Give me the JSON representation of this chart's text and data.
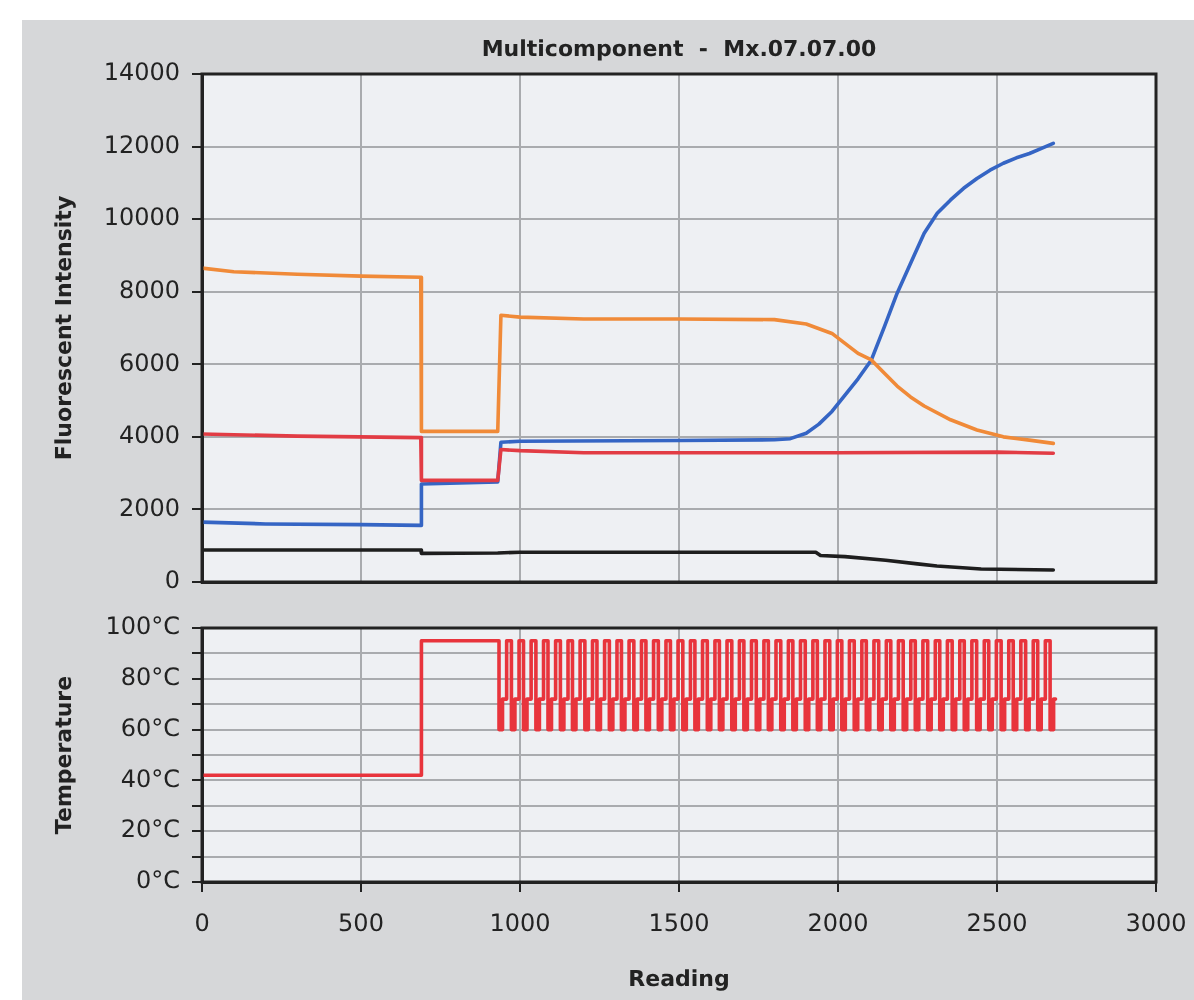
{
  "chart_data": [
    {
      "type": "line",
      "title": "Multicomponent  -  Mx.07.07.00",
      "ylabel": "Fluorescent Intensity",
      "xlim": [
        0,
        3000
      ],
      "xticks": [
        0,
        500,
        1000,
        1500,
        2000,
        2500,
        3000
      ],
      "ylim": [
        0,
        14000
      ],
      "yticks": [
        0,
        2000,
        4000,
        6000,
        8000,
        10000,
        12000,
        14000
      ],
      "grid": true,
      "tick_labels": "y",
      "series": [
        {
          "color": "#f08a38",
          "x": [
            0,
            100,
            300,
            500,
            688,
            690,
            930,
            940,
            1000,
            1200,
            1500,
            1800,
            1900,
            1981,
            2063,
            2105,
            2146,
            2186,
            2228,
            2271,
            2354,
            2437,
            2520,
            2602,
            2677
          ],
          "values": [
            8650,
            8550,
            8480,
            8430,
            8400,
            4150,
            4150,
            7350,
            7300,
            7250,
            7250,
            7230,
            7110,
            6850,
            6300,
            6120,
            5750,
            5400,
            5100,
            4850,
            4470,
            4190,
            4000,
            3910,
            3820
          ]
        },
        {
          "color": "#e23c44",
          "x": [
            0,
            100,
            300,
            688,
            690,
            930,
            940,
            1000,
            1200,
            1500,
            2000,
            2500,
            2677
          ],
          "values": [
            4080,
            4060,
            4020,
            3980,
            2800,
            2800,
            3650,
            3620,
            3560,
            3560,
            3560,
            3580,
            3550
          ]
        },
        {
          "color": "#3565c4",
          "x": [
            0,
            200,
            500,
            688,
            690,
            930,
            940,
            1000,
            1500,
            1800,
            1850,
            1900,
            1940,
            1981,
            2022,
            2063,
            2105,
            2146,
            2186,
            2228,
            2271,
            2312,
            2354,
            2395,
            2437,
            2478,
            2520,
            2561,
            2602,
            2640,
            2677
          ],
          "values": [
            1650,
            1600,
            1580,
            1560,
            2700,
            2760,
            3850,
            3880,
            3900,
            3920,
            3950,
            4100,
            4350,
            4700,
            5150,
            5600,
            6120,
            7040,
            7960,
            8780,
            9610,
            10160,
            10530,
            10850,
            11120,
            11350,
            11540,
            11690,
            11810,
            11950,
            12090
          ]
        },
        {
          "color": "#1e1e1e",
          "x": [
            0,
            688,
            690,
            930,
            1000,
            1500,
            1930,
            1945,
            2022,
            2150,
            2250,
            2311,
            2450,
            2677
          ],
          "values": [
            880,
            880,
            790,
            800,
            820,
            820,
            820,
            730,
            700,
            600,
            500,
            440,
            360,
            330
          ]
        }
      ]
    },
    {
      "type": "step",
      "ylabel": "Temperature",
      "xlabel": "Reading",
      "xlim": [
        0,
        3000
      ],
      "xticks": [
        0,
        500,
        1000,
        1500,
        2000,
        2500,
        3000
      ],
      "ylim": [
        0,
        100
      ],
      "yticks": [
        {
          "value": 0,
          "label": "0°C"
        },
        {
          "value": 10,
          "label": null
        },
        {
          "value": 20,
          "label": "20°C"
        },
        {
          "value": 30,
          "label": null
        },
        {
          "value": 40,
          "label": "40°C"
        },
        {
          "value": 50,
          "label": null
        },
        {
          "value": 60,
          "label": "60°C"
        },
        {
          "value": 70,
          "label": null
        },
        {
          "value": 80,
          "label": "80°C"
        },
        {
          "value": 90,
          "label": null
        },
        {
          "value": 100,
          "label": "100°C"
        }
      ],
      "grid": true,
      "series": [
        {
          "color": "#e8343c",
          "x": [
            0,
            690,
            934,
            945,
            958,
            973,
            984,
            997,
            1011,
            1022,
            1035,
            1050,
            1061,
            1074,
            1088,
            1099,
            1112,
            1127,
            1138,
            1151,
            1165,
            1176,
            1189,
            1204,
            1215,
            1228,
            1242,
            1253,
            1266,
            1281,
            1292,
            1305,
            1319,
            1330,
            1343,
            1358,
            1369,
            1382,
            1396,
            1407,
            1420,
            1435,
            1446,
            1459,
            1473,
            1484,
            1497,
            1512,
            1523,
            1536,
            1550,
            1561,
            1574,
            1589,
            1600,
            1613,
            1627,
            1638,
            1651,
            1666,
            1677,
            1690,
            1704,
            1715,
            1728,
            1743,
            1754,
            1767,
            1781,
            1792,
            1805,
            1820,
            1831,
            1844,
            1858,
            1869,
            1882,
            1897,
            1908,
            1921,
            1935,
            1946,
            1959,
            1974,
            1985,
            1998,
            2012,
            2023,
            2036,
            2051,
            2062,
            2075,
            2089,
            2100,
            2113,
            2128,
            2139,
            2152,
            2166,
            2177,
            2190,
            2205,
            2216,
            2229,
            2243,
            2254,
            2267,
            2282,
            2293,
            2306,
            2320,
            2331,
            2344,
            2359,
            2370,
            2383,
            2397,
            2408,
            2421,
            2436,
            2447,
            2460,
            2474,
            2485,
            2498,
            2513,
            2524,
            2537,
            2551,
            2562,
            2575,
            2590,
            2601,
            2614,
            2628,
            2639,
            2652,
            2667,
            2678,
            2684
          ],
          "values": [
            42,
            95,
            60,
            72,
            95,
            60,
            72,
            95,
            60,
            72,
            95,
            60,
            72,
            95,
            60,
            72,
            95,
            60,
            72,
            95,
            60,
            72,
            95,
            60,
            72,
            95,
            60,
            72,
            95,
            60,
            72,
            95,
            60,
            72,
            95,
            60,
            72,
            95,
            60,
            72,
            95,
            60,
            72,
            95,
            60,
            72,
            95,
            60,
            72,
            95,
            60,
            72,
            95,
            60,
            72,
            95,
            60,
            72,
            95,
            60,
            72,
            95,
            60,
            72,
            95,
            60,
            72,
            95,
            60,
            72,
            95,
            60,
            72,
            95,
            60,
            72,
            95,
            60,
            72,
            95,
            60,
            72,
            95,
            60,
            72,
            95,
            60,
            72,
            95,
            60,
            72,
            95,
            60,
            72,
            95,
            60,
            72,
            95,
            60,
            72,
            95,
            60,
            72,
            95,
            60,
            72,
            95,
            60,
            72,
            95,
            60,
            72,
            95,
            60,
            72,
            95,
            60,
            72,
            95,
            60,
            72,
            95,
            60,
            72,
            95,
            60,
            72,
            95,
            60,
            72,
            95,
            60,
            72,
            95,
            60,
            72,
            95,
            60,
            72,
            72
          ]
        }
      ]
    }
  ]
}
